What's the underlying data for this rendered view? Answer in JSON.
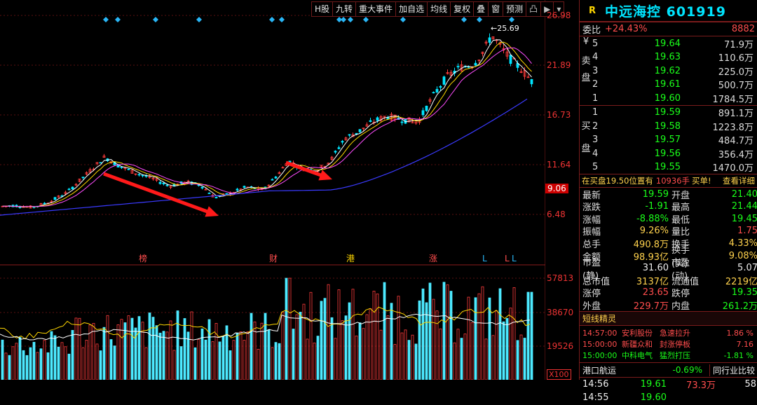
{
  "toolbar": {
    "buttons": [
      "H股",
      "九转",
      "重大事件",
      "加自选",
      "均线",
      "复权",
      "叠",
      "窗",
      "预测",
      "凸",
      "▶",
      "▾"
    ]
  },
  "chart_markers": {
    "event_labels": [
      "榜",
      "财",
      "港",
      "涨",
      "L",
      "L",
      "L"
    ],
    "peak_label": "←25.69"
  },
  "chart_data": {
    "type": "candlestick",
    "price_axis_ticks": [
      26.98,
      21.89,
      16.73,
      11.64,
      6.48
    ],
    "current_price_marker": 9.06,
    "peak_price": 25.69,
    "volume_axis_ticks": [
      57813,
      38670,
      19526
    ],
    "volume_unit": "X100"
  },
  "stock": {
    "flag": "R",
    "name_code": "中远海控 601919"
  },
  "committee": {
    "label": "委比",
    "ratio": "+24.43%",
    "diff": "8882"
  },
  "sell_orders": {
    "side_label": [
      "¥",
      "卖",
      "盘"
    ],
    "rows": [
      {
        "level": "5",
        "price": "19.64",
        "volume": "71.9万"
      },
      {
        "level": "4",
        "price": "19.63",
        "volume": "110.6万"
      },
      {
        "level": "3",
        "price": "19.62",
        "volume": "225.0万"
      },
      {
        "level": "2",
        "price": "19.61",
        "volume": "500.7万"
      },
      {
        "level": "1",
        "price": "19.60",
        "volume": "1784.5万"
      }
    ]
  },
  "buy_orders": {
    "side_label": [
      "买",
      "盘"
    ],
    "rows": [
      {
        "level": "1",
        "price": "19.59",
        "volume": "891.1万"
      },
      {
        "level": "2",
        "price": "19.58",
        "volume": "1223.8万"
      },
      {
        "level": "3",
        "price": "19.57",
        "volume": "484.7万"
      },
      {
        "level": "4",
        "price": "19.56",
        "volume": "356.4万"
      },
      {
        "level": "5",
        "price": "19.55",
        "volume": "1470.0万"
      }
    ]
  },
  "queue_note": {
    "text": "在买盘19.50位置有",
    "amount": "10936手",
    "action": "买单!",
    "link": "查看详细"
  },
  "stats": [
    {
      "k1": "最新",
      "v1": "19.59",
      "c1": "green",
      "k2": "开盘",
      "v2": "21.40",
      "c2": "green"
    },
    {
      "k1": "涨跌",
      "v1": "-1.91",
      "c1": "green",
      "k2": "最高",
      "v2": "21.44",
      "c2": "green"
    },
    {
      "k1": "涨幅",
      "v1": "-8.88%",
      "c1": "green",
      "k2": "最低",
      "v2": "19.45",
      "c2": "green"
    },
    {
      "k1": "振幅",
      "v1": "9.26%",
      "c1": "yellow",
      "k2": "量比",
      "v2": "1.75",
      "c2": "red"
    },
    {
      "k1": "总手",
      "v1": "490.8万",
      "c1": "yellow",
      "k2": "换手",
      "v2": "4.33%",
      "c2": "yellow"
    },
    {
      "k1": "金额",
      "v1": "98.93亿",
      "c1": "yellow",
      "k2": "换手(实)",
      "v2": "9.08%",
      "c2": "yellow"
    },
    {
      "k1": "市盈(静)",
      "v1": "31.60",
      "c1": "white",
      "k2": "市盈(动)",
      "v2": "5.07",
      "c2": "white"
    },
    {
      "k1": "总市值",
      "v1": "3137亿",
      "c1": "yellow",
      "k2": "流通值",
      "v2": "2219亿",
      "c2": "yellow"
    },
    {
      "k1": "涨停",
      "v1": "23.65",
      "c1": "red",
      "k2": "跌停",
      "v2": "19.35",
      "c2": "green"
    },
    {
      "k1": "外盘",
      "v1": "229.7万",
      "c1": "red",
      "k2": "内盘",
      "v2": "261.2万",
      "c2": "green"
    }
  ],
  "news": {
    "title": "短线精灵",
    "rows": [
      {
        "time": "14:57:00",
        "stock": "安利股份",
        "event": "急速拉升",
        "value": "1.86 %"
      },
      {
        "time": "15:00:00",
        "stock": "新疆众和",
        "event": "封涨停板",
        "value": "7.16"
      },
      {
        "time": "15:00:00",
        "stock": "中科电气",
        "event": "猛烈打压",
        "value": "-1.81 %"
      }
    ]
  },
  "sector": {
    "name": "港口航运",
    "change": "-0.69%",
    "compare": "同行业比较"
  },
  "ticks": [
    {
      "time": "14:56",
      "price": "19.61",
      "vol": "73.3万",
      "n": "58"
    },
    {
      "time": "14:55",
      "price": "19.60",
      "vol": "",
      "n": ""
    }
  ],
  "colors": {
    "up": "#ff3b3b",
    "down": "#00e5ff",
    "ma_blue": "#3a3aff",
    "border": "#7a1b1b"
  }
}
